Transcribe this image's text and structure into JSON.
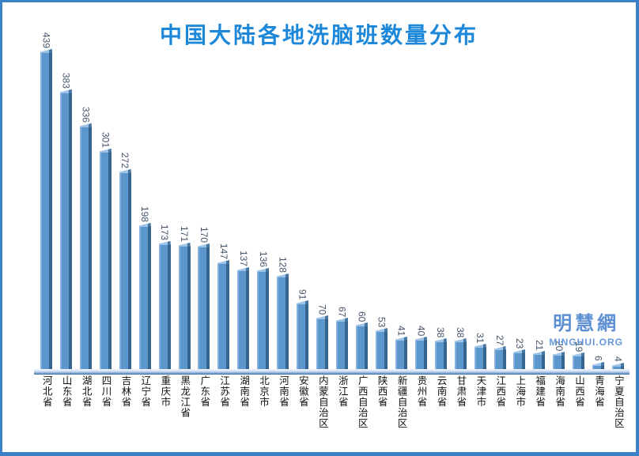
{
  "title": {
    "text": "中国大陆各地洗脑班数量分布",
    "color": "#1d88d9"
  },
  "watermark": {
    "cjk": "明慧網",
    "latin": "MINGHUI.ORG",
    "color": "#6697d8"
  },
  "frame": {
    "border_color": "#3a81c6"
  },
  "chart_data": {
    "type": "bar",
    "title": "中国大陆各地洗脑班数量分布",
    "orientation": "vertical",
    "categories": [
      "河北省",
      "山东省",
      "湖北省",
      "四川省",
      "吉林省",
      "辽宁省",
      "重庆市",
      "黑龙江省",
      "广东省",
      "江苏省",
      "湖南省",
      "北京市",
      "河南省",
      "安徽省",
      "内蒙自治区",
      "浙江省",
      "广西自治区",
      "陕西省",
      "新疆自治区",
      "贵州省",
      "云南省",
      "甘肃省",
      "天津市",
      "江西省",
      "上海市",
      "福建省",
      "海南省",
      "山西省",
      "青海省",
      "宁夏自治区"
    ],
    "values": [
      439,
      383,
      336,
      301,
      272,
      198,
      173,
      171,
      170,
      147,
      137,
      136,
      128,
      91,
      70,
      67,
      60,
      53,
      41,
      40,
      38,
      38,
      31,
      27,
      23,
      21,
      20,
      19,
      6,
      4
    ],
    "xlabel": "",
    "ylabel": "",
    "ylim": [
      0,
      450
    ],
    "grid": false,
    "legend": "none",
    "y_axis_shown": false,
    "data_labels": "rotated 90deg above each bar",
    "category_labels": "vertical upright CJK below axis",
    "bar_style": "3d-bevel",
    "bar_face_color": "#5b97cd",
    "bar_edge_color": "#35648f",
    "bar_highlight_color": "#9ec5e8",
    "value_label_color": "#44546a"
  }
}
